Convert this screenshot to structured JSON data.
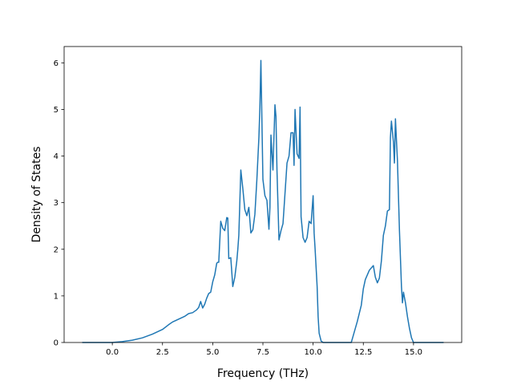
{
  "chart_data": {
    "type": "line",
    "xlabel": "Frequency (THz)",
    "ylabel": "Density of States",
    "xlim": [
      -2.4,
      17.4
    ],
    "ylim": [
      0,
      6.35
    ],
    "xticks": [
      0.0,
      2.5,
      5.0,
      7.5,
      10.0,
      12.5,
      15.0
    ],
    "xtick_labels": [
      "0.0",
      "2.5",
      "5.0",
      "7.5",
      "10.0",
      "12.5",
      "15.0"
    ],
    "yticks": [
      0,
      1,
      2,
      3,
      4,
      5,
      6
    ],
    "ytick_labels": [
      "0",
      "1",
      "2",
      "3",
      "4",
      "5",
      "6"
    ],
    "grid": false,
    "series_color": "#1f77b4",
    "series": [
      {
        "x": [
          -1.5,
          0.0,
          0.5,
          1.0,
          1.5,
          2.0,
          2.5,
          2.8,
          3.0,
          3.3,
          3.6,
          3.8,
          4.0,
          4.2,
          4.3,
          4.4,
          4.5,
          4.6,
          4.7,
          4.8,
          4.9,
          5.0,
          5.1,
          5.2,
          5.25,
          5.3,
          5.4,
          5.5,
          5.6,
          5.7,
          5.75,
          5.8,
          5.9,
          6.0,
          6.1,
          6.2,
          6.25,
          6.3,
          6.4,
          6.5,
          6.6,
          6.7,
          6.8,
          6.9,
          7.0,
          7.1,
          7.2,
          7.3,
          7.35,
          7.4,
          7.5,
          7.6,
          7.7,
          7.8,
          7.85,
          7.9,
          8.0,
          8.1,
          8.15,
          8.2,
          8.3,
          8.4,
          8.5,
          8.6,
          8.7,
          8.8,
          8.9,
          9.0,
          9.05,
          9.1,
          9.2,
          9.3,
          9.35,
          9.4,
          9.5,
          9.6,
          9.7,
          9.8,
          9.9,
          10.0,
          10.05,
          10.1,
          10.2,
          10.25,
          10.3,
          10.4,
          10.5,
          10.6,
          11.0,
          11.5,
          11.9,
          12.0,
          12.2,
          12.4,
          12.5,
          12.6,
          12.8,
          12.9,
          13.0,
          13.1,
          13.2,
          13.3,
          13.4,
          13.5,
          13.6,
          13.7,
          13.8,
          13.85,
          13.9,
          14.0,
          14.05,
          14.1,
          14.2,
          14.3,
          14.4,
          14.45,
          14.5,
          14.6,
          14.7,
          14.8,
          14.9,
          15.0,
          15.1,
          16.5
        ],
        "y": [
          0.0,
          0.0,
          0.02,
          0.05,
          0.1,
          0.18,
          0.28,
          0.38,
          0.44,
          0.5,
          0.56,
          0.62,
          0.64,
          0.7,
          0.75,
          0.88,
          0.74,
          0.82,
          0.95,
          1.05,
          1.08,
          1.3,
          1.45,
          1.7,
          1.72,
          1.72,
          2.6,
          2.45,
          2.4,
          2.68,
          2.67,
          1.8,
          1.82,
          1.2,
          1.4,
          1.75,
          2.0,
          2.3,
          3.7,
          3.3,
          2.85,
          2.72,
          2.9,
          2.35,
          2.42,
          2.75,
          3.5,
          4.4,
          5.05,
          6.05,
          3.5,
          3.15,
          3.05,
          2.43,
          2.9,
          4.45,
          3.7,
          5.1,
          4.85,
          3.7,
          2.2,
          2.4,
          2.55,
          3.2,
          3.85,
          4.0,
          4.5,
          4.5,
          3.8,
          5.0,
          4.05,
          3.95,
          5.05,
          2.7,
          2.25,
          2.15,
          2.25,
          2.6,
          2.55,
          3.15,
          2.35,
          2.0,
          1.2,
          0.55,
          0.2,
          0.03,
          0.0,
          0.0,
          0.0,
          0.0,
          0.0,
          0.15,
          0.45,
          0.8,
          1.15,
          1.35,
          1.55,
          1.6,
          1.65,
          1.4,
          1.28,
          1.38,
          1.75,
          2.3,
          2.5,
          2.82,
          2.85,
          4.4,
          4.75,
          4.3,
          3.85,
          4.8,
          3.9,
          2.4,
          1.2,
          0.85,
          1.08,
          0.85,
          0.55,
          0.3,
          0.1,
          0.0,
          0.0,
          0.0
        ]
      }
    ]
  }
}
